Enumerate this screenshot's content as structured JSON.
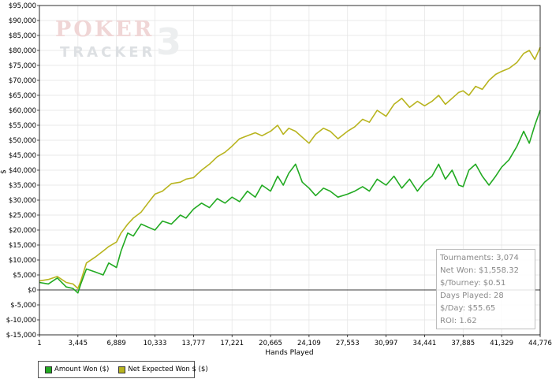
{
  "chart_data": {
    "type": "line",
    "xlabel": "Hands Played",
    "ylabel": "$",
    "xlim": [
      1,
      44776
    ],
    "ylim": [
      -15000,
      95000
    ],
    "x_ticks": [
      1,
      3445,
      6889,
      10333,
      13777,
      17221,
      20665,
      24109,
      27553,
      30997,
      34441,
      37885,
      41329,
      44776
    ],
    "x_tick_labels": [
      "1",
      "3,445",
      "6,889",
      "10,333",
      "13,777",
      "17,221",
      "20,665",
      "24,109",
      "27,553",
      "30,997",
      "34,441",
      "37,885",
      "41,329",
      "44,776"
    ],
    "y_ticks": [
      -15000,
      -10000,
      -5000,
      0,
      5000,
      10000,
      15000,
      20000,
      25000,
      30000,
      35000,
      40000,
      45000,
      50000,
      55000,
      60000,
      65000,
      70000,
      75000,
      80000,
      85000,
      90000,
      95000
    ],
    "y_tick_labels": [
      "$-15,000",
      "$-10,000",
      "$-5,000",
      "$0",
      "$5,000",
      "$10,000",
      "$15,000",
      "$20,000",
      "$25,000",
      "$30,000",
      "$35,000",
      "$40,000",
      "$45,000",
      "$50,000",
      "$55,000",
      "$60,000",
      "$65,000",
      "$70,000",
      "$75,000",
      "$80,000",
      "$85,000",
      "$90,000",
      "$95,000"
    ],
    "grid": true,
    "legend": "bottom-left",
    "series": [
      {
        "name": "Amount Won ($)",
        "color": "#22aa22",
        "x": [
          1,
          800,
          1600,
          2400,
          3000,
          3445,
          3700,
          4200,
          5000,
          5700,
          6200,
          6889,
          7300,
          7900,
          8400,
          9100,
          9700,
          10333,
          11000,
          11800,
          12600,
          13100,
          13777,
          14500,
          15200,
          15900,
          16600,
          17221,
          17900,
          18600,
          19300,
          19900,
          20665,
          21300,
          21800,
          22300,
          22900,
          23500,
          24109,
          24700,
          25400,
          26000,
          26700,
          27553,
          28200,
          28900,
          29500,
          30200,
          30997,
          31700,
          32400,
          33100,
          33800,
          34441,
          35100,
          35700,
          36300,
          36900,
          37500,
          37885,
          38400,
          39000,
          39600,
          40200,
          40800,
          41329,
          42000,
          42700,
          43300,
          43800,
          44300,
          44776
        ],
        "values": [
          2500,
          2000,
          4000,
          1000,
          500,
          -1000,
          2000,
          7000,
          6000,
          5000,
          9000,
          7500,
          13000,
          19000,
          18000,
          22000,
          21000,
          20000,
          23000,
          22000,
          25000,
          24000,
          27000,
          29000,
          27500,
          30500,
          29000,
          31000,
          29500,
          33000,
          31000,
          35000,
          33000,
          38000,
          35000,
          39000,
          42000,
          36000,
          34000,
          31500,
          34000,
          33000,
          31000,
          32000,
          33000,
          34500,
          33000,
          37000,
          35000,
          38000,
          34000,
          37000,
          33000,
          36000,
          38000,
          42000,
          37000,
          40000,
          35000,
          34500,
          40000,
          42000,
          38000,
          35000,
          38000,
          41000,
          43500,
          48000,
          53000,
          49000,
          55000,
          60000
        ]
      },
      {
        "name": "Net Expected Won $ ($)",
        "color": "#b8b41e",
        "x": [
          1,
          800,
          1600,
          2400,
          3000,
          3445,
          3700,
          4200,
          5000,
          5700,
          6200,
          6889,
          7300,
          7900,
          8400,
          9100,
          9700,
          10333,
          11000,
          11800,
          12600,
          13100,
          13777,
          14500,
          15200,
          15900,
          16600,
          17221,
          17900,
          18600,
          19300,
          19900,
          20665,
          21300,
          21800,
          22300,
          22900,
          23500,
          24109,
          24700,
          25400,
          26000,
          26700,
          27553,
          28200,
          28900,
          29500,
          30200,
          30997,
          31700,
          32400,
          33100,
          33800,
          34441,
          35100,
          35700,
          36300,
          36900,
          37500,
          37885,
          38400,
          39000,
          39600,
          40200,
          40800,
          41329,
          42000,
          42700,
          43300,
          43800,
          44300,
          44776
        ],
        "values": [
          3000,
          3500,
          4500,
          2500,
          2000,
          500,
          3000,
          9000,
          11000,
          13000,
          14500,
          16000,
          19000,
          22000,
          24000,
          26000,
          29000,
          32000,
          33000,
          35500,
          36000,
          37000,
          37500,
          40000,
          42000,
          44500,
          46000,
          48000,
          50500,
          51500,
          52500,
          51500,
          53000,
          55000,
          52000,
          54000,
          53000,
          51000,
          49000,
          52000,
          54000,
          53000,
          50500,
          53000,
          54500,
          57000,
          56000,
          60000,
          58000,
          62000,
          64000,
          61000,
          63000,
          61500,
          63000,
          65000,
          62000,
          64000,
          66000,
          66500,
          65000,
          68000,
          67000,
          70000,
          72000,
          73000,
          74000,
          76000,
          79000,
          80000,
          77000,
          81000
        ]
      }
    ]
  },
  "stats": {
    "rows": [
      "Tournaments: 3,074",
      "Net Won: $1,558.32",
      "$/Tourney: $0.51",
      "Days Played: 28",
      "$/Day: $55.65",
      "ROI: 1.62"
    ]
  },
  "watermark": {
    "line1": "POKER",
    "line2": "TRACKER",
    "numeral": "3"
  }
}
